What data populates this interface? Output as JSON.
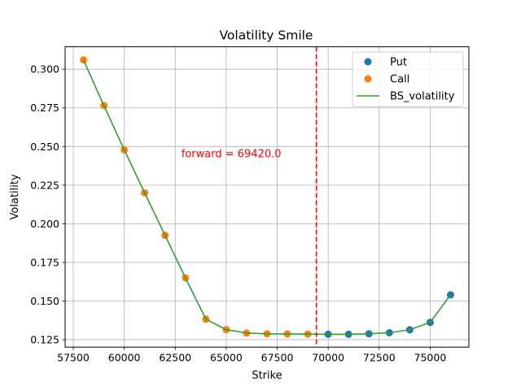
{
  "chart_data": {
    "type": "scatter",
    "title": "Volatility Smile",
    "xlabel": "Strike",
    "ylabel": "Volatility",
    "xlim": [
      57100,
      76900
    ],
    "ylim": [
      0.1202,
      0.3145
    ],
    "xticks": [
      57500,
      60000,
      62500,
      65000,
      67500,
      70000,
      72500,
      75000
    ],
    "xtick_labels": [
      "57500",
      "60000",
      "62500",
      "65000",
      "67500",
      "70000",
      "72500",
      "75000"
    ],
    "yticks": [
      0.125,
      0.15,
      0.175,
      0.2,
      0.225,
      0.25,
      0.275,
      0.3
    ],
    "ytick_labels": [
      "0.125",
      "0.150",
      "0.175",
      "0.200",
      "0.225",
      "0.250",
      "0.275",
      "0.300"
    ],
    "grid": true,
    "legend_position": "top-right",
    "series": [
      {
        "name": "Put",
        "kind": "scatter",
        "color": "#1f77b4",
        "x": [
          70000,
          71000,
          72000,
          73000,
          74000,
          75000,
          76000
        ],
        "y": [
          0.1285,
          0.1285,
          0.1288,
          0.1295,
          0.1314,
          0.1362,
          0.154
        ]
      },
      {
        "name": "Call",
        "kind": "scatter",
        "color": "#ff7f0e",
        "x": [
          58000,
          59000,
          60000,
          61000,
          62000,
          63000,
          64000,
          65000,
          66000,
          67000,
          68000,
          69000
        ],
        "y": [
          0.306,
          0.2765,
          0.2478,
          0.22,
          0.1925,
          0.165,
          0.1383,
          0.1315,
          0.1293,
          0.1288,
          0.1287,
          0.1286
        ]
      },
      {
        "name": "BS_volatility",
        "kind": "line",
        "color": "#2ca02c",
        "x": [
          58000,
          59000,
          60000,
          61000,
          62000,
          63000,
          64000,
          65000,
          66000,
          67000,
          68000,
          69000,
          70000,
          71000,
          72000,
          73000,
          74000,
          75000,
          76000
        ],
        "y": [
          0.306,
          0.2765,
          0.2478,
          0.22,
          0.1925,
          0.165,
          0.1383,
          0.1315,
          0.1293,
          0.1288,
          0.1287,
          0.1286,
          0.1285,
          0.1285,
          0.1288,
          0.1295,
          0.1314,
          0.1362,
          0.154
        ]
      }
    ],
    "vline": {
      "x": 69420,
      "color": "#ff0000",
      "style": "dashed"
    },
    "annotation": {
      "text": "forward = 69420.0",
      "x": 62800,
      "y": 0.2455,
      "color": "#ff0000"
    }
  }
}
